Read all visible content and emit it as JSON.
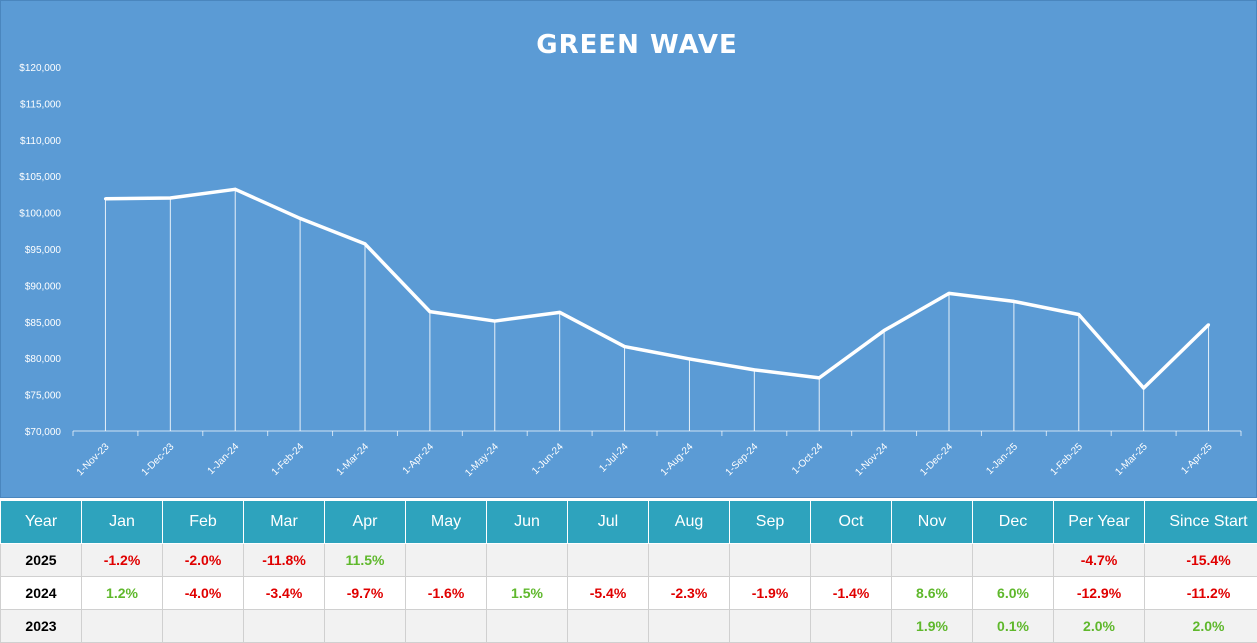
{
  "chart_data": {
    "type": "line",
    "title": "GREEN WAVE",
    "x": [
      "1-Nov-23",
      "1-Dec-23",
      "1-Jan-24",
      "1-Feb-24",
      "1-Mar-24",
      "1-Apr-24",
      "1-May-24",
      "1-Jun-24",
      "1-Jul-24",
      "1-Aug-24",
      "1-Sep-24",
      "1-Oct-24",
      "1-Nov-24",
      "1-Dec-24",
      "1-Jan-25",
      "1-Feb-25",
      "1-Mar-25",
      "1-Apr-25"
    ],
    "series": [
      {
        "values": [
          101900,
          102000,
          103200,
          99200,
          95700,
          86400,
          85100,
          86300,
          81600,
          79900,
          78400,
          77300,
          83800,
          88900,
          87800,
          86000,
          75900,
          84600
        ]
      }
    ],
    "ylim": [
      70000,
      120000
    ],
    "yticks": [
      "$70,000",
      "$75,000",
      "$80,000",
      "$85,000",
      "$90,000",
      "$95,000",
      "$100,000",
      "$105,000",
      "$110,000",
      "$115,000",
      "$120,000"
    ],
    "xlabel": "",
    "ylabel": "",
    "grid": false,
    "drop_lines": true,
    "line_color": "#ffffff",
    "background": "#5b9bd5"
  },
  "table": {
    "headers": [
      "Year",
      "Jan",
      "Feb",
      "Mar",
      "Apr",
      "May",
      "Jun",
      "Jul",
      "Aug",
      "Sep",
      "Oct",
      "Nov",
      "Dec",
      "Per Year",
      "Since Start"
    ],
    "rows": [
      {
        "year": "2025",
        "cells": [
          "-1.2%",
          "-2.0%",
          "-11.8%",
          "11.5%",
          "",
          "",
          "",
          "",
          "",
          "",
          "",
          "",
          "-4.7%",
          "-15.4%"
        ]
      },
      {
        "year": "2024",
        "cells": [
          "1.2%",
          "-4.0%",
          "-3.4%",
          "-9.7%",
          "-1.6%",
          "1.5%",
          "-5.4%",
          "-2.3%",
          "-1.9%",
          "-1.4%",
          "8.6%",
          "6.0%",
          "-12.9%",
          "-11.2%"
        ]
      },
      {
        "year": "2023",
        "cells": [
          "",
          "",
          "",
          "",
          "",
          "",
          "",
          "",
          "",
          "",
          "1.9%",
          "0.1%",
          "2.0%",
          "2.0%"
        ]
      }
    ],
    "colors": {
      "header_bg": "#2ea3bd",
      "positive": "#5fb82c",
      "negative": "#e00000"
    }
  }
}
